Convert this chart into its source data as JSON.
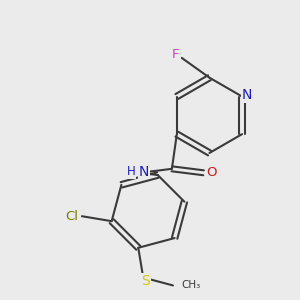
{
  "background_color": "#ebebeb",
  "bond_color": "#3a3a3a",
  "atom_colors": {
    "N": "#1a1acc",
    "O": "#cc1a1a",
    "F": "#cc44cc",
    "Cl": "#7a7a00",
    "S": "#cccc00",
    "H": "#1a1acc",
    "C": "#3a3a3a"
  },
  "lw": 1.5
}
